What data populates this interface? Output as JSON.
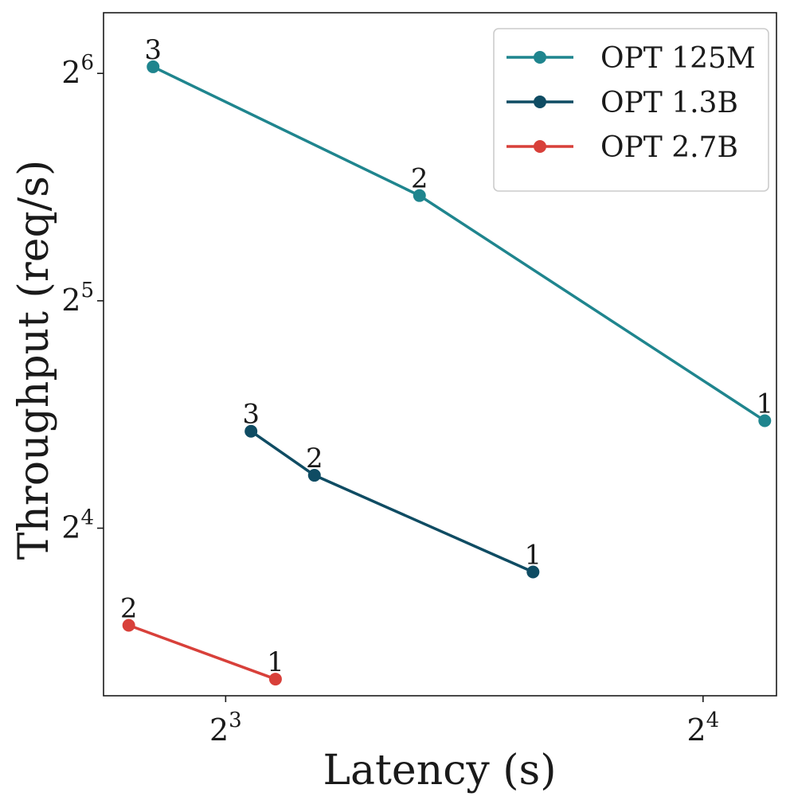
{
  "chart_data": {
    "type": "line",
    "xlabel": "Latency (s)",
    "ylabel": "Throughput (req/s)",
    "x_scale": "log2",
    "y_scale": "log2",
    "xlim": [
      6.7,
      17.8
    ],
    "ylim": [
      9.6,
      77.0
    ],
    "x_ticks": [
      {
        "value": 8,
        "base": "2",
        "exp": "3"
      },
      {
        "value": 16,
        "base": "2",
        "exp": "4"
      }
    ],
    "y_ticks": [
      {
        "value": 16,
        "base": "2",
        "exp": "4"
      },
      {
        "value": 32,
        "base": "2",
        "exp": "5"
      },
      {
        "value": 64,
        "base": "2",
        "exp": "6"
      }
    ],
    "grid": false,
    "legend_position": "top-right",
    "series": [
      {
        "name": "OPT 125M",
        "color": "#1f858e",
        "points": [
          {
            "x": 7.2,
            "y": 65.3,
            "label": "3"
          },
          {
            "x": 10.6,
            "y": 44.1,
            "label": "2"
          },
          {
            "x": 17.5,
            "y": 22.2,
            "label": "1"
          }
        ]
      },
      {
        "name": "OPT 1.3B",
        "color": "#0f4c63",
        "points": [
          {
            "x": 8.3,
            "y": 21.5,
            "label": "3"
          },
          {
            "x": 9.1,
            "y": 18.8,
            "label": "2"
          },
          {
            "x": 12.5,
            "y": 14.0,
            "label": "1"
          }
        ]
      },
      {
        "name": "OPT 2.7B",
        "color": "#d8403a",
        "points": [
          {
            "x": 6.95,
            "y": 11.9,
            "label": "2"
          },
          {
            "x": 8.6,
            "y": 10.1,
            "label": "1"
          }
        ]
      }
    ]
  }
}
